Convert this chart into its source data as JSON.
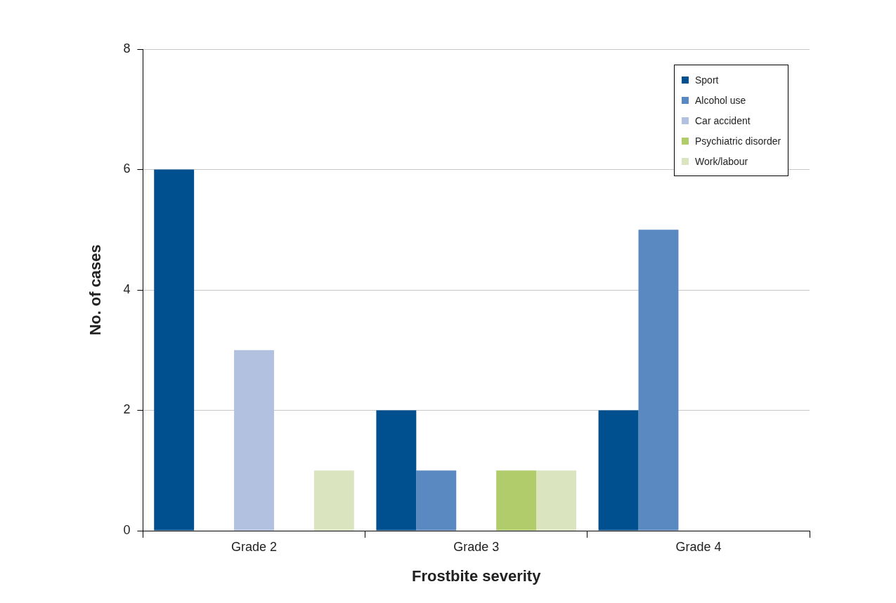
{
  "chart_data": {
    "type": "bar",
    "xlabel": "Frostbite severity",
    "ylabel": "No. of cases",
    "categories": [
      "Grade 2",
      "Grade 3",
      "Grade 4"
    ],
    "series": [
      {
        "name": "Sport",
        "color": "#00508f",
        "values": [
          6,
          2,
          2
        ]
      },
      {
        "name": "Alcohol use",
        "color": "#5a88c0",
        "values": [
          0,
          1,
          5
        ]
      },
      {
        "name": "Car accident",
        "color": "#b2c1df",
        "values": [
          3,
          0,
          0
        ]
      },
      {
        "name": "Psychiatric disorder",
        "color": "#b1cd6b",
        "values": [
          0,
          1,
          0
        ]
      },
      {
        "name": "Work/labour",
        "color": "#dae5c0",
        "values": [
          1,
          1,
          0
        ]
      }
    ],
    "ylim": [
      0,
      8
    ],
    "yticks": [
      0,
      2,
      4,
      6,
      8
    ],
    "grid": "y",
    "legend": "top right"
  }
}
